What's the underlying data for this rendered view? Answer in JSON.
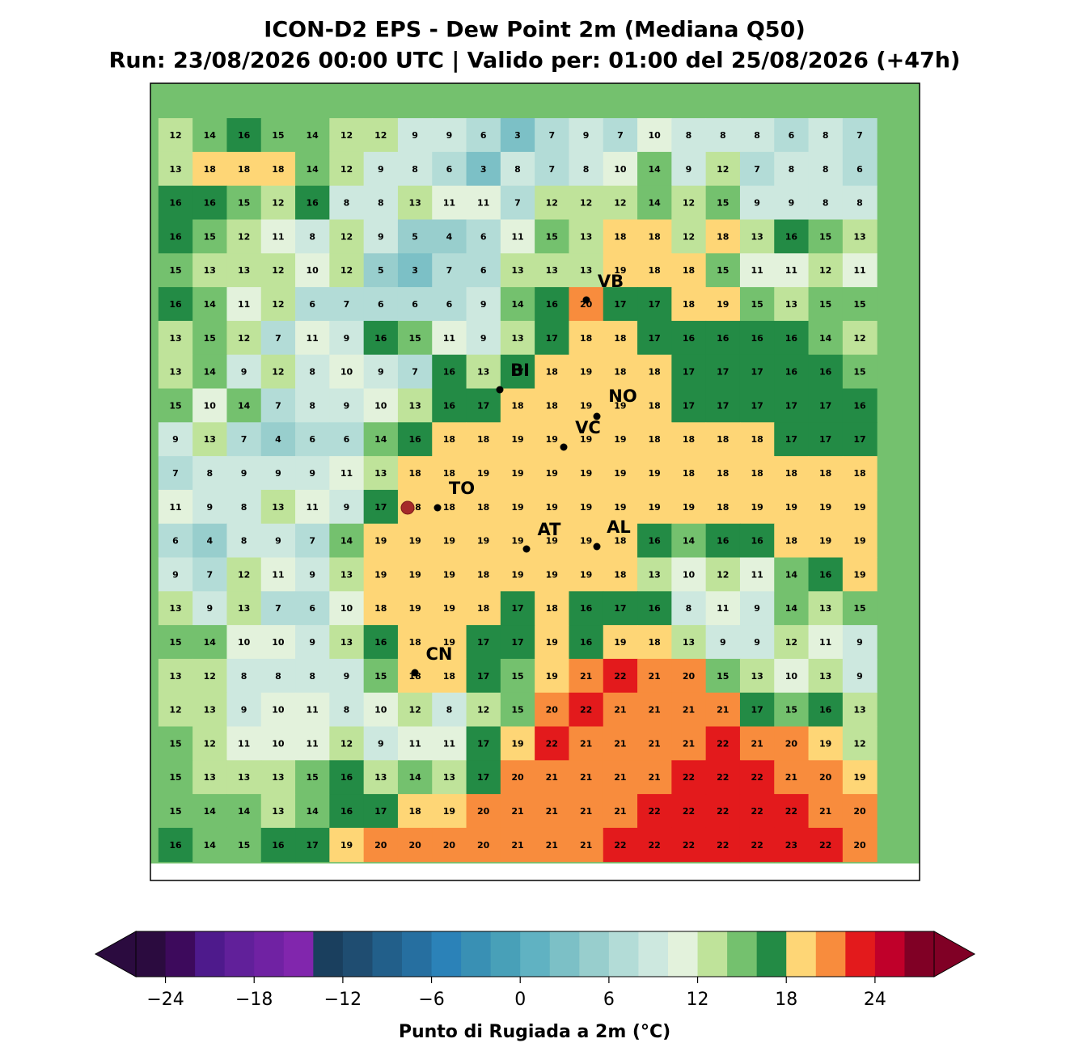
{
  "title": "ICON-D2 EPS - Dew Point 2m (Mediana Q50)",
  "subtitle": "Run: 23/08/2026 00:00 UTC | Valido per: 01:00 del 25/08/2026 (+47h)",
  "grid_values": [
    [
      12,
      14,
      16,
      15,
      14,
      12,
      12,
      9,
      9,
      6,
      3,
      7,
      9,
      7,
      10,
      8,
      8,
      8,
      6,
      8,
      7
    ],
    [
      13,
      18,
      18,
      18,
      14,
      12,
      9,
      8,
      6,
      3,
      8,
      7,
      8,
      10,
      14,
      9,
      12,
      7,
      8,
      8,
      6
    ],
    [
      16,
      16,
      15,
      12,
      16,
      8,
      8,
      13,
      11,
      11,
      7,
      12,
      12,
      12,
      14,
      12,
      15,
      9,
      9,
      8,
      8
    ],
    [
      16,
      15,
      12,
      11,
      8,
      12,
      9,
      5,
      4,
      6,
      11,
      15,
      13,
      18,
      18,
      12,
      18,
      13,
      16,
      15,
      13
    ],
    [
      15,
      13,
      13,
      12,
      10,
      12,
      5,
      3,
      7,
      6,
      13,
      13,
      13,
      19,
      18,
      18,
      15,
      11,
      11,
      12,
      11
    ],
    [
      16,
      14,
      11,
      12,
      6,
      7,
      6,
      6,
      6,
      9,
      14,
      16,
      20,
      17,
      17,
      18,
      19,
      15,
      13,
      15,
      15
    ],
    [
      13,
      15,
      12,
      7,
      11,
      9,
      16,
      15,
      11,
      9,
      13,
      17,
      18,
      18,
      17,
      16,
      16,
      16,
      16,
      14,
      12
    ],
    [
      13,
      14,
      9,
      12,
      8,
      10,
      9,
      7,
      16,
      13,
      17,
      18,
      19,
      18,
      18,
      17,
      17,
      17,
      16,
      16,
      15
    ],
    [
      15,
      10,
      14,
      7,
      8,
      9,
      10,
      13,
      16,
      17,
      18,
      18,
      19,
      19,
      18,
      17,
      17,
      17,
      17,
      17,
      16
    ],
    [
      9,
      13,
      7,
      4,
      6,
      6,
      14,
      16,
      18,
      18,
      19,
      19,
      19,
      19,
      18,
      18,
      18,
      18,
      17,
      17,
      17
    ],
    [
      7,
      8,
      9,
      9,
      9,
      11,
      13,
      18,
      18,
      19,
      19,
      19,
      19,
      19,
      19,
      18,
      18,
      18,
      18,
      18,
      18
    ],
    [
      11,
      9,
      8,
      13,
      11,
      9,
      17,
      18,
      18,
      18,
      19,
      19,
      19,
      19,
      19,
      19,
      18,
      19,
      19,
      19,
      19
    ],
    [
      6,
      4,
      8,
      9,
      7,
      14,
      19,
      19,
      19,
      19,
      19,
      19,
      19,
      18,
      16,
      14,
      16,
      16,
      18,
      19,
      19
    ],
    [
      9,
      7,
      12,
      11,
      9,
      13,
      19,
      19,
      19,
      18,
      19,
      19,
      19,
      18,
      13,
      10,
      12,
      11,
      14,
      16,
      19
    ],
    [
      13,
      9,
      13,
      7,
      6,
      10,
      18,
      19,
      19,
      18,
      17,
      18,
      16,
      17,
      16,
      8,
      11,
      9,
      14,
      13,
      15
    ],
    [
      15,
      14,
      10,
      10,
      9,
      13,
      16,
      18,
      19,
      17,
      17,
      19,
      16,
      19,
      18,
      13,
      9,
      9,
      12,
      11,
      9
    ],
    [
      13,
      12,
      8,
      8,
      8,
      9,
      15,
      18,
      18,
      17,
      15,
      19,
      21,
      22,
      21,
      20,
      15,
      13,
      10,
      13,
      9
    ],
    [
      12,
      13,
      9,
      10,
      11,
      8,
      10,
      12,
      8,
      12,
      15,
      20,
      22,
      21,
      21,
      21,
      21,
      17,
      15,
      16,
      13
    ],
    [
      15,
      12,
      11,
      10,
      11,
      12,
      9,
      11,
      11,
      17,
      19,
      22,
      21,
      21,
      21,
      21,
      22,
      21,
      20,
      19,
      12
    ],
    [
      15,
      13,
      13,
      13,
      15,
      16,
      13,
      14,
      13,
      17,
      20,
      21,
      21,
      21,
      21,
      22,
      22,
      22,
      21,
      20,
      19
    ],
    [
      15,
      14,
      14,
      13,
      14,
      16,
      17,
      18,
      19,
      20,
      21,
      21,
      21,
      21,
      22,
      22,
      22,
      22,
      22,
      21,
      20
    ],
    [
      16,
      14,
      15,
      16,
      17,
      19,
      20,
      20,
      20,
      20,
      21,
      21,
      21,
      22,
      22,
      22,
      22,
      22,
      23,
      22,
      20
    ]
  ],
  "cities": [
    "VB",
    "BI",
    "NO",
    "VC",
    "TO",
    "AT",
    "AL",
    "CN"
  ],
  "colorbar": {
    "label": "Punto di Rugiada a 2m (°C)",
    "clim": [
      -26,
      28
    ],
    "colors": [
      "#2b0b3f",
      "#3d0a5c",
      "#4e1a8c",
      "#61209a",
      "#7022a3",
      "#8126ad",
      "#1a3f5e",
      "#1f4d71",
      "#225f8a",
      "#266fa0",
      "#2b82b8",
      "#3990b4",
      "#48a0b8",
      "#60b2c2",
      "#7cc0c6",
      "#98cecd",
      "#b3dcd7",
      "#cde8df",
      "#e3f2dc",
      "#bfe39a",
      "#74c16e",
      "#238b45",
      "#fed676",
      "#f88c3d",
      "#e31a1c",
      "#c0002a",
      "#800025"
    ],
    "ticks": [
      {
        "value": -24,
        "label": "−24"
      },
      {
        "value": -18,
        "label": "−18"
      },
      {
        "value": -12,
        "label": "−12"
      },
      {
        "value": -6,
        "label": "−6"
      },
      0,
      6,
      12,
      18,
      24
    ]
  }
}
